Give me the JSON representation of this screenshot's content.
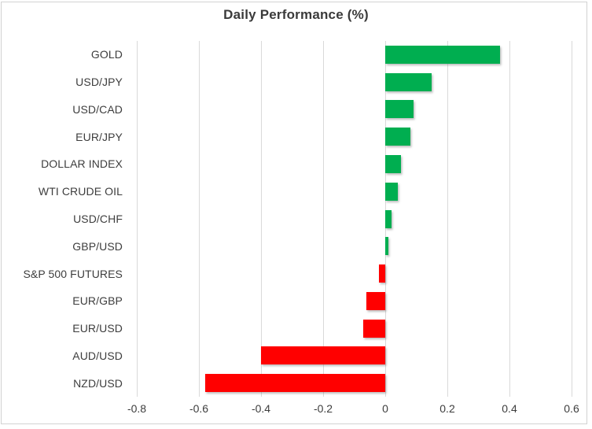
{
  "chart_data": {
    "type": "bar",
    "orientation": "horizontal",
    "title": "Daily Performance (%)",
    "categories": [
      "GOLD",
      "USD/JPY",
      "USD/CAD",
      "EUR/JPY",
      "DOLLAR INDEX",
      "WTI CRUDE OIL",
      "USD/CHF",
      "GBP/USD",
      "S&P 500 FUTURES",
      "EUR/GBP",
      "EUR/USD",
      "AUD/USD",
      "NZD/USD"
    ],
    "values": [
      0.37,
      0.15,
      0.09,
      0.08,
      0.05,
      0.04,
      0.02,
      0.01,
      -0.02,
      -0.06,
      -0.07,
      -0.4,
      -0.58
    ],
    "xlabel": "",
    "ylabel": "",
    "xlim": [
      -0.8,
      0.6
    ],
    "xticks": [
      -0.8,
      -0.6,
      -0.4,
      -0.2,
      0,
      0.2,
      0.4,
      0.6
    ],
    "xtick_labels": [
      "-0.8",
      "-0.6",
      "-0.4",
      "-0.2",
      "0",
      "0.2",
      "0.4",
      "0.6"
    ],
    "grid": "vertical",
    "legend": "none",
    "colors": {
      "positive": "#00ae50",
      "negative": "#ff0000",
      "gridline": "#d9d9d9",
      "border": "#d2d2d2",
      "title_text": "#3a3a3a",
      "label_text": "#3d3d3d"
    }
  }
}
